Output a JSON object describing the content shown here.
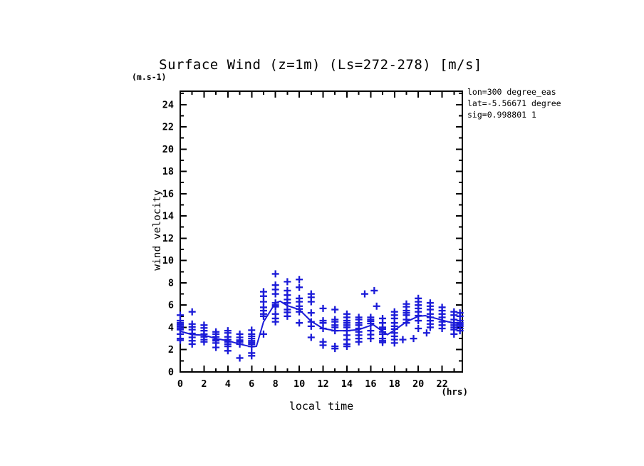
{
  "title": "Surface Wind (z=1m) (Ls=272-278) [m/s]",
  "y_units_label": "(m.s-1)",
  "y_axis_title": "wind velocity",
  "x_axis_title": "local time",
  "x_units_label": "(hrs)",
  "legend": {
    "lines": [
      "lon=300 degree_eas",
      "lat=-5.56671 degree",
      "sig=0.998801 1"
    ]
  },
  "colors": {
    "data": "#1b1bd8",
    "axis": "#000000",
    "background": "#ffffff"
  },
  "chart_data": {
    "type": "scatter",
    "title": "Surface Wind (z=1m) (Ls=272-278) [m/s]",
    "xlabel": "local time (hrs)",
    "ylabel": "wind velocity (m.s-1)",
    "xlim": [
      0,
      23.7
    ],
    "ylim": [
      0,
      25.2
    ],
    "x_major": 2,
    "x_minor": 1,
    "y_major": 2,
    "y_minor": 1,
    "x_tick_labels": [
      "0",
      "2",
      "4",
      "6",
      "8",
      "10",
      "12",
      "14",
      "16",
      "18",
      "20",
      "22"
    ],
    "y_tick_labels": [
      "0",
      "2",
      "4",
      "6",
      "8",
      "10",
      "12",
      "14",
      "16",
      "18",
      "20",
      "22",
      "24"
    ],
    "grid": false,
    "marker": "plus",
    "series": [
      {
        "name": "individual-measurements",
        "type": "scatter",
        "bins": [
          {
            "t": 0,
            "values": [
              5.1,
              4.6,
              4.4,
              4.25,
              4.1,
              3.95,
              3.8,
              3.4,
              3.0,
              2.85
            ]
          },
          {
            "t": 1,
            "values": [
              5.4,
              4.3,
              4.05,
              3.8,
              3.45,
              3.1,
              2.8,
              2.5
            ]
          },
          {
            "t": 2,
            "values": [
              4.2,
              3.95,
              3.7,
              3.4,
              3.15,
              2.9,
              2.7
            ]
          },
          {
            "t": 3,
            "values": [
              3.6,
              3.4,
              3.15,
              2.9,
              2.8,
              2.6,
              2.2
            ]
          },
          {
            "t": 4,
            "values": [
              3.7,
              3.5,
              3.15,
              2.9,
              2.7,
              2.5,
              2.3,
              1.9
            ]
          },
          {
            "t": 5,
            "values": [
              3.4,
              3.1,
              2.85,
              2.7,
              2.5,
              1.25
            ]
          },
          {
            "t": 6,
            "values": [
              3.75,
              3.4,
              3.2,
              3.0,
              2.8,
              2.65,
              2.5,
              2.3,
              1.7,
              1.45
            ]
          },
          {
            "t": 7,
            "values": [
              7.2,
              6.8,
              6.3,
              5.8,
              5.5,
              5.2,
              5.0,
              3.4
            ]
          },
          {
            "t": 8,
            "values": [
              8.8,
              7.8,
              7.4,
              7.0,
              6.2,
              6.0,
              5.85,
              5.2,
              4.8,
              4.5
            ]
          },
          {
            "t": 9,
            "values": [
              8.1,
              7.3,
              6.9,
              6.5,
              6.2,
              5.6,
              5.35,
              5.0
            ]
          },
          {
            "t": 10,
            "values": [
              8.3,
              7.6,
              6.6,
              6.3,
              5.9,
              5.65,
              5.4,
              4.4
            ]
          },
          {
            "t": 11,
            "values": [
              7.0,
              6.7,
              6.3,
              5.3,
              4.5,
              4.1,
              3.1
            ]
          },
          {
            "t": 12,
            "values": [
              5.7,
              4.6,
              4.4,
              3.9,
              2.7,
              2.4
            ]
          },
          {
            "t": 13,
            "values": [
              5.6,
              4.7,
              4.5,
              4.2,
              4.0,
              3.7,
              2.3,
              2.1
            ]
          },
          {
            "t": 14,
            "values": [
              5.2,
              4.9,
              4.6,
              4.4,
              4.2,
              4.0,
              3.7,
              3.3,
              2.9,
              2.5,
              2.3
            ]
          },
          {
            "t": 15,
            "values": [
              4.9,
              4.7,
              4.4,
              4.2,
              3.9,
              3.6,
              3.3,
              3.0,
              2.7
            ]
          },
          {
            "t": 15.5,
            "values": [
              7.0
            ]
          },
          {
            "t": 16,
            "values": [
              4.9,
              4.7,
              4.55,
              4.35,
              3.7,
              3.35,
              3.0
            ]
          },
          {
            "t": 16.3,
            "values": [
              7.3
            ]
          },
          {
            "t": 16.5,
            "values": [
              5.9
            ]
          },
          {
            "t": 17,
            "values": [
              4.8,
              4.4,
              4.0,
              3.85,
              3.6,
              3.4,
              3.0,
              2.8,
              2.65
            ]
          },
          {
            "t": 18,
            "values": [
              5.4,
              5.1,
              4.8,
              4.4,
              4.1,
              3.85,
              3.5,
              3.2,
              2.9,
              2.6
            ]
          },
          {
            "t": 18.7,
            "values": [
              2.9
            ]
          },
          {
            "t": 19,
            "values": [
              6.1,
              5.85,
              5.5,
              5.3,
              5.1,
              4.7,
              4.4
            ]
          },
          {
            "t": 19.6,
            "values": [
              3.0
            ]
          },
          {
            "t": 20,
            "values": [
              6.6,
              6.3,
              6.0,
              5.7,
              5.4,
              5.05,
              4.6,
              3.9
            ]
          },
          {
            "t": 20.7,
            "values": [
              3.5
            ]
          },
          {
            "t": 21,
            "values": [
              6.2,
              5.9,
              5.6,
              5.2,
              4.9,
              4.6,
              4.3,
              4.0
            ]
          },
          {
            "t": 22,
            "values": [
              5.8,
              5.5,
              5.2,
              4.9,
              4.5,
              4.2,
              3.9
            ]
          },
          {
            "t": 23,
            "values": [
              5.4,
              5.1,
              4.7,
              4.4,
              4.2,
              4.0,
              3.8,
              3.4
            ]
          },
          {
            "t": 23.5,
            "values": [
              5.3,
              5.0,
              4.6,
              4.4,
              4.25,
              4.1,
              3.9,
              3.7
            ]
          }
        ]
      },
      {
        "name": "mean-wind-speed",
        "type": "line",
        "points": [
          [
            0,
            3.65
          ],
          [
            1,
            3.35
          ],
          [
            2,
            3.3
          ],
          [
            3,
            3.0
          ],
          [
            4,
            2.8
          ],
          [
            5,
            2.5
          ],
          [
            6,
            2.25
          ],
          [
            6.4,
            2.3
          ],
          [
            7,
            4.5
          ],
          [
            8,
            6.2
          ],
          [
            8.4,
            6.35
          ],
          [
            9,
            5.95
          ],
          [
            10,
            5.6
          ],
          [
            11,
            4.55
          ],
          [
            12,
            3.9
          ],
          [
            13,
            3.7
          ],
          [
            14,
            3.7
          ],
          [
            15,
            3.8
          ],
          [
            16.2,
            4.25
          ],
          [
            17.4,
            3.35
          ],
          [
            18,
            3.75
          ],
          [
            19,
            4.5
          ],
          [
            20,
            5.0
          ],
          [
            20.6,
            5.05
          ],
          [
            21.5,
            4.8
          ],
          [
            22.5,
            4.5
          ],
          [
            23.7,
            4.3
          ]
        ]
      }
    ]
  }
}
